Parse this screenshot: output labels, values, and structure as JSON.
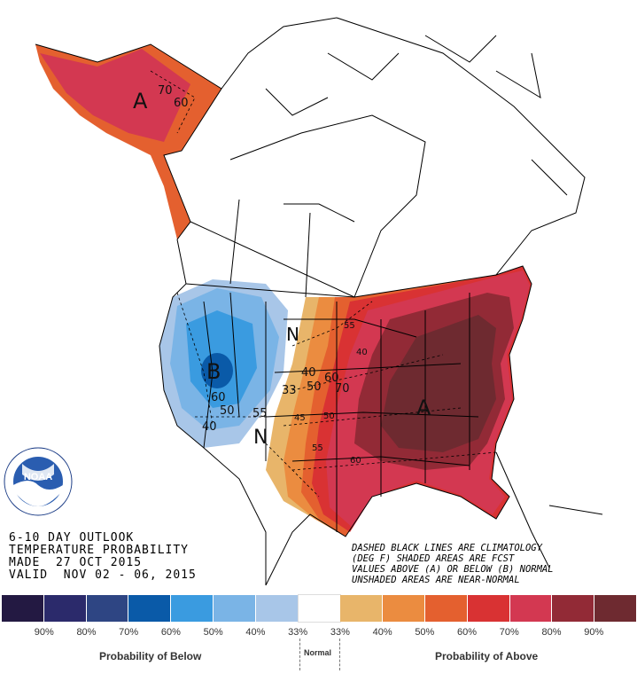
{
  "outlook": {
    "line1": "6-10 DAY OUTLOOK",
    "line2": "TEMPERATURE PROBABILITY",
    "line3": "MADE  27 OCT 2015",
    "line4": "VALID  NOV 02 - 06, 2015"
  },
  "notes": {
    "line1": "DASHED BLACK LINES ARE CLIMATOLOGY",
    "line2": "(DEG F) SHADED AREAS ARE FCST",
    "line3": "VALUES ABOVE (A) OR BELOW (B) NORMAL",
    "line4": "UNSHADED AREAS ARE NEAR-NORMAL"
  },
  "logo": {
    "text": "NOAA",
    "ring_text": "NATIONAL OCEANIC AND ATMOSPHERIC ADMINISTRATION · U.S. DEPARTMENT OF COMMERCE"
  },
  "map_labels": {
    "above_marker": "A",
    "below_marker": "B",
    "near_normal_n1": "N",
    "near_normal_n2": "N",
    "alaska_a": "A",
    "alaska_70": "70",
    "alaska_60": "60",
    "west_60": "60",
    "west_50": "50",
    "west_40": "40",
    "west_55": "55",
    "mid_40": "40",
    "mid_50": "50",
    "mid_60": "60",
    "mid_70": "70",
    "mid_33": "33",
    "east_55": "55",
    "east_40": "40",
    "south_55": "55",
    "south_60": "60",
    "south_50": "50",
    "south_45": "45"
  },
  "legend": {
    "colors": [
      "#231942",
      "#2b2a6b",
      "#2e4583",
      "#0a5aa8",
      "#3a9be0",
      "#7ab4e6",
      "#a8c6e8",
      "#ffffff",
      "#e8b56a",
      "#eb8c40",
      "#e4602f",
      "#d93233",
      "#d33851",
      "#922a36",
      "#6e2a30"
    ],
    "labels": [
      "90%",
      "80%",
      "70%",
      "60%",
      "50%",
      "40%",
      "33%",
      "33%",
      "40%",
      "50%",
      "60%",
      "70%",
      "80%",
      "90%"
    ],
    "below_caption": "Probability of Below",
    "normal_caption": "Normal",
    "above_caption": "Probability of Above"
  }
}
